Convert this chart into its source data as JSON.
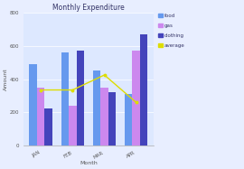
{
  "title": "Monthly Expenditure",
  "xlabel": "Month",
  "ylabel": "Amount",
  "months": [
    "JAN",
    "FEB",
    "MAR",
    "APR"
  ],
  "food": [
    490,
    560,
    450,
    310
  ],
  "gas": [
    350,
    240,
    350,
    570
  ],
  "clothing": [
    225,
    570,
    320,
    670
  ],
  "average": [
    335,
    335,
    425,
    260
  ],
  "bar_colors": {
    "food": "#6699ee",
    "gas": "#cc88ee",
    "clothing": "#4444bb"
  },
  "avg_color": "#dddd00",
  "ylim": [
    0,
    800
  ],
  "yticks": [
    0,
    200,
    400,
    600,
    800
  ],
  "background": "#e8eeff",
  "plot_bg": "#dde8ff",
  "grid_color": "#ffffff",
  "title_fontsize": 5.5,
  "axis_label_fontsize": 4.5,
  "tick_fontsize": 4,
  "legend_fontsize": 4
}
